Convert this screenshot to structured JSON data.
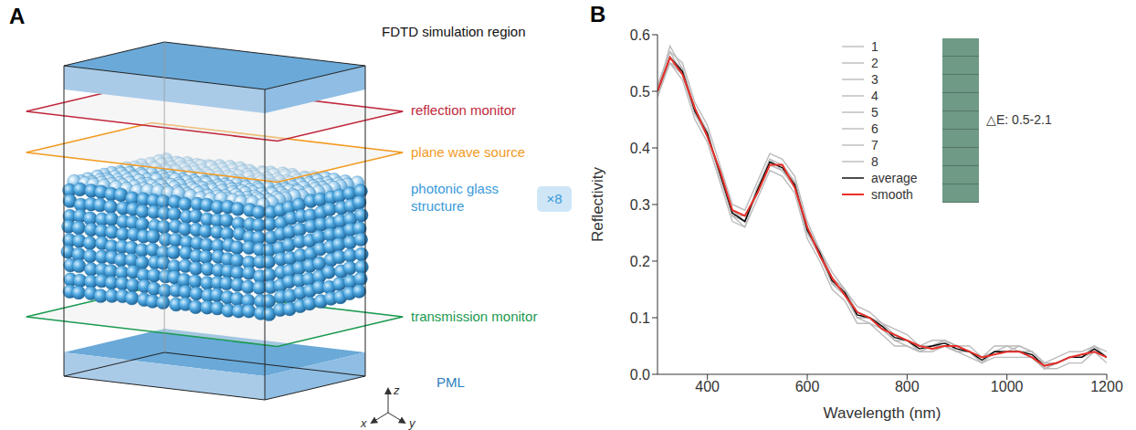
{
  "diagram": {
    "panel_label": "A",
    "title": "FDTD simulation region",
    "labels": {
      "reflection": "reflection monitor",
      "source": "plane wave source",
      "structure": "photonic glass structure",
      "multiplier": "×8",
      "transmission": "transmission monitor",
      "pml": "PML"
    },
    "axes": [
      "z",
      "x",
      "y"
    ]
  },
  "chart_data": {
    "panel_label": "B",
    "type": "line",
    "x_label": "Wavelength (nm)",
    "y_label": "Reflectivity",
    "xlim": [
      300,
      1200
    ],
    "xticks": [
      400,
      600,
      800,
      1000,
      1200
    ],
    "ylim": [
      0,
      0.6
    ],
    "yticks": [
      {
        "value": 0,
        "label": "0.0"
      },
      0.1,
      0.2,
      0.3,
      0.4,
      0.5,
      0.6
    ],
    "legend": "top right",
    "grid": false,
    "annotation": {
      "text": "△E: 0.5-2.1",
      "color": "#6e9a86"
    },
    "x": [
      300,
      325,
      350,
      375,
      400,
      425,
      450,
      475,
      500,
      525,
      550,
      575,
      600,
      625,
      650,
      675,
      700,
      725,
      750,
      775,
      800,
      825,
      850,
      875,
      900,
      925,
      950,
      975,
      1000,
      1025,
      1050,
      1075,
      1100,
      1125,
      1150,
      1175,
      1200
    ],
    "series": [
      {
        "name": "1",
        "color": "#bbbbbb",
        "values": [
          0.51,
          0.57,
          0.55,
          0.48,
          0.44,
          0.37,
          0.3,
          0.29,
          0.34,
          0.39,
          0.38,
          0.35,
          0.27,
          0.22,
          0.18,
          0.15,
          0.12,
          0.11,
          0.09,
          0.08,
          0.07,
          0.05,
          0.06,
          0.06,
          0.05,
          0.05,
          0.03,
          0.05,
          0.05,
          0.05,
          0.04,
          0.02,
          0.03,
          0.04,
          0.04,
          0.05,
          0.04
        ]
      },
      {
        "name": "2",
        "color": "#bbbbbb",
        "values": [
          0.49,
          0.55,
          0.52,
          0.45,
          0.41,
          0.34,
          0.27,
          0.26,
          0.31,
          0.36,
          0.35,
          0.32,
          0.24,
          0.2,
          0.15,
          0.13,
          0.09,
          0.09,
          0.07,
          0.05,
          0.05,
          0.04,
          0.04,
          0.05,
          0.04,
          0.03,
          0.02,
          0.03,
          0.03,
          0.03,
          0.03,
          0.01,
          0.01,
          0.02,
          0.02,
          0.04,
          0.02
        ]
      },
      {
        "name": "3",
        "color": "#bbbbbb",
        "values": [
          0.5,
          0.58,
          0.54,
          0.47,
          0.43,
          0.35,
          0.29,
          0.27,
          0.33,
          0.38,
          0.36,
          0.34,
          0.26,
          0.21,
          0.17,
          0.15,
          0.11,
          0.1,
          0.08,
          0.07,
          0.06,
          0.04,
          0.05,
          0.06,
          0.04,
          0.04,
          0.03,
          0.04,
          0.04,
          0.04,
          0.03,
          0.01,
          0.02,
          0.03,
          0.03,
          0.04,
          0.03
        ]
      },
      {
        "name": "4",
        "color": "#bbbbbb",
        "values": [
          0.5,
          0.55,
          0.53,
          0.46,
          0.42,
          0.36,
          0.28,
          0.28,
          0.32,
          0.37,
          0.37,
          0.33,
          0.25,
          0.22,
          0.16,
          0.14,
          0.1,
          0.1,
          0.09,
          0.06,
          0.06,
          0.05,
          0.05,
          0.05,
          0.05,
          0.04,
          0.02,
          0.04,
          0.04,
          0.04,
          0.04,
          0.02,
          0.02,
          0.03,
          0.03,
          0.05,
          0.03
        ]
      },
      {
        "name": "5",
        "color": "#bbbbbb",
        "values": [
          0.5,
          0.56,
          0.54,
          0.47,
          0.42,
          0.36,
          0.29,
          0.27,
          0.32,
          0.38,
          0.37,
          0.34,
          0.26,
          0.21,
          0.17,
          0.14,
          0.11,
          0.1,
          0.08,
          0.07,
          0.06,
          0.05,
          0.05,
          0.06,
          0.05,
          0.04,
          0.03,
          0.04,
          0.05,
          0.04,
          0.03,
          0.02,
          0.02,
          0.03,
          0.03,
          0.04,
          0.03
        ]
      },
      {
        "name": "6",
        "color": "#bbbbbb",
        "values": [
          0.49,
          0.56,
          0.53,
          0.46,
          0.43,
          0.35,
          0.28,
          0.26,
          0.33,
          0.37,
          0.36,
          0.33,
          0.25,
          0.21,
          0.16,
          0.15,
          0.1,
          0.09,
          0.08,
          0.06,
          0.05,
          0.04,
          0.05,
          0.05,
          0.04,
          0.04,
          0.02,
          0.04,
          0.04,
          0.04,
          0.04,
          0.01,
          0.02,
          0.03,
          0.03,
          0.05,
          0.03
        ]
      },
      {
        "name": "7",
        "color": "#bbbbbb",
        "values": [
          0.51,
          0.57,
          0.53,
          0.47,
          0.42,
          0.36,
          0.29,
          0.28,
          0.32,
          0.37,
          0.37,
          0.34,
          0.26,
          0.22,
          0.17,
          0.14,
          0.11,
          0.1,
          0.09,
          0.07,
          0.06,
          0.05,
          0.05,
          0.06,
          0.05,
          0.04,
          0.03,
          0.04,
          0.04,
          0.05,
          0.04,
          0.02,
          0.02,
          0.03,
          0.03,
          0.04,
          0.03
        ]
      },
      {
        "name": "8",
        "color": "#bbbbbb",
        "values": [
          0.5,
          0.55,
          0.54,
          0.46,
          0.42,
          0.35,
          0.28,
          0.27,
          0.33,
          0.37,
          0.36,
          0.33,
          0.25,
          0.21,
          0.16,
          0.14,
          0.1,
          0.1,
          0.08,
          0.06,
          0.06,
          0.04,
          0.05,
          0.05,
          0.04,
          0.04,
          0.02,
          0.04,
          0.04,
          0.04,
          0.03,
          0.01,
          0.02,
          0.03,
          0.03,
          0.05,
          0.03
        ]
      },
      {
        "name": "average",
        "color": "#000000",
        "values": [
          0.5,
          0.56,
          0.535,
          0.465,
          0.425,
          0.355,
          0.285,
          0.27,
          0.325,
          0.375,
          0.365,
          0.335,
          0.255,
          0.215,
          0.165,
          0.145,
          0.105,
          0.1,
          0.085,
          0.065,
          0.06,
          0.045,
          0.05,
          0.055,
          0.045,
          0.04,
          0.025,
          0.04,
          0.04,
          0.04,
          0.035,
          0.015,
          0.02,
          0.03,
          0.03,
          0.045,
          0.03
        ]
      },
      {
        "name": "smooth",
        "color": "#e8302a",
        "values": [
          0.5,
          0.56,
          0.53,
          0.47,
          0.42,
          0.36,
          0.29,
          0.28,
          0.32,
          0.37,
          0.37,
          0.33,
          0.26,
          0.21,
          0.17,
          0.14,
          0.11,
          0.1,
          0.08,
          0.07,
          0.06,
          0.05,
          0.045,
          0.05,
          0.05,
          0.04,
          0.03,
          0.035,
          0.04,
          0.04,
          0.03,
          0.015,
          0.02,
          0.03,
          0.035,
          0.04,
          0.03
        ]
      }
    ]
  }
}
